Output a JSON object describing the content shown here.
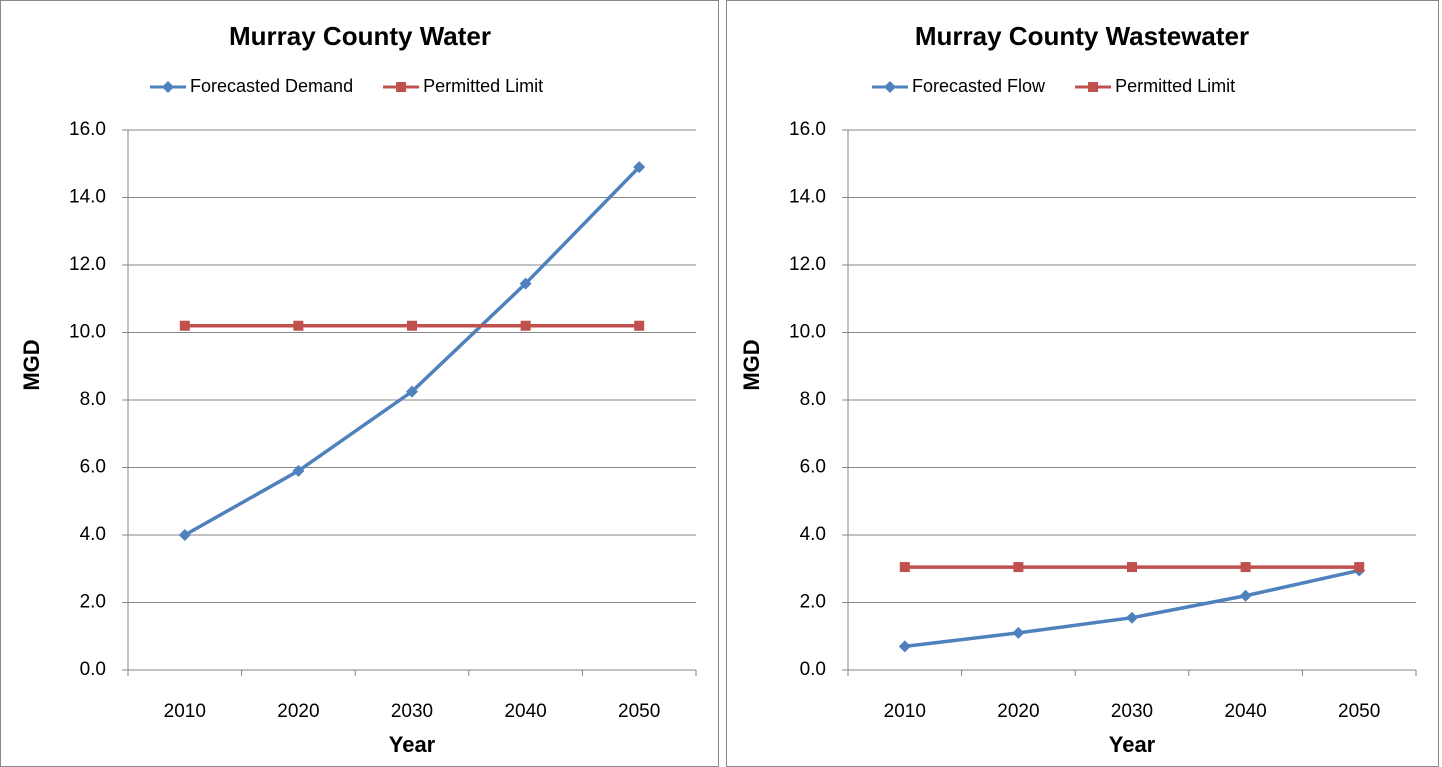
{
  "chart_data": [
    {
      "type": "line",
      "title": "Murray County Water",
      "x_label": "Year",
      "y_label": "MGD",
      "categories": [
        "2010",
        "2020",
        "2030",
        "2040",
        "2050"
      ],
      "series": [
        {
          "name": "Forecasted Demand",
          "color": "#4f81bd",
          "marker": "diamond",
          "values": [
            4.0,
            5.9,
            8.25,
            11.45,
            14.9
          ]
        },
        {
          "name": "Permitted Limit",
          "color": "#c0504d",
          "marker": "square",
          "values": [
            10.2,
            10.2,
            10.2,
            10.2,
            10.2
          ]
        }
      ],
      "ylim": [
        0,
        16
      ],
      "yticks": [
        {
          "value": 0,
          "label": "0.0"
        },
        {
          "value": 2,
          "label": "2.0"
        },
        {
          "value": 4,
          "label": "4.0"
        },
        {
          "value": 6,
          "label": "6.0"
        },
        {
          "value": 8,
          "label": "8.0"
        },
        {
          "value": 10,
          "label": "10.0"
        },
        {
          "value": 12,
          "label": "12.0"
        },
        {
          "value": 14,
          "label": "14.0"
        },
        {
          "value": 16,
          "label": "16.0"
        }
      ],
      "grid": true,
      "legend": "top"
    },
    {
      "type": "line",
      "title": "Murray County Wastewater",
      "x_label": "Year",
      "y_label": "MGD",
      "categories": [
        "2010",
        "2020",
        "2030",
        "2040",
        "2050"
      ],
      "series": [
        {
          "name": "Forecasted Flow",
          "color": "#4f81bd",
          "marker": "diamond",
          "values": [
            0.7,
            1.1,
            1.55,
            2.2,
            2.95
          ]
        },
        {
          "name": "Permitted Limit",
          "color": "#c0504d",
          "marker": "square",
          "values": [
            3.05,
            3.05,
            3.05,
            3.05,
            3.05
          ]
        }
      ],
      "ylim": [
        0,
        16
      ],
      "yticks": [
        {
          "value": 0,
          "label": "0.0"
        },
        {
          "value": 2,
          "label": "2.0"
        },
        {
          "value": 4,
          "label": "4.0"
        },
        {
          "value": 6,
          "label": "6.0"
        },
        {
          "value": 8,
          "label": "8.0"
        },
        {
          "value": 10,
          "label": "10.0"
        },
        {
          "value": 12,
          "label": "12.0"
        },
        {
          "value": 14,
          "label": "14.0"
        },
        {
          "value": 16,
          "label": "16.0"
        }
      ],
      "grid": true,
      "legend": "top"
    }
  ]
}
